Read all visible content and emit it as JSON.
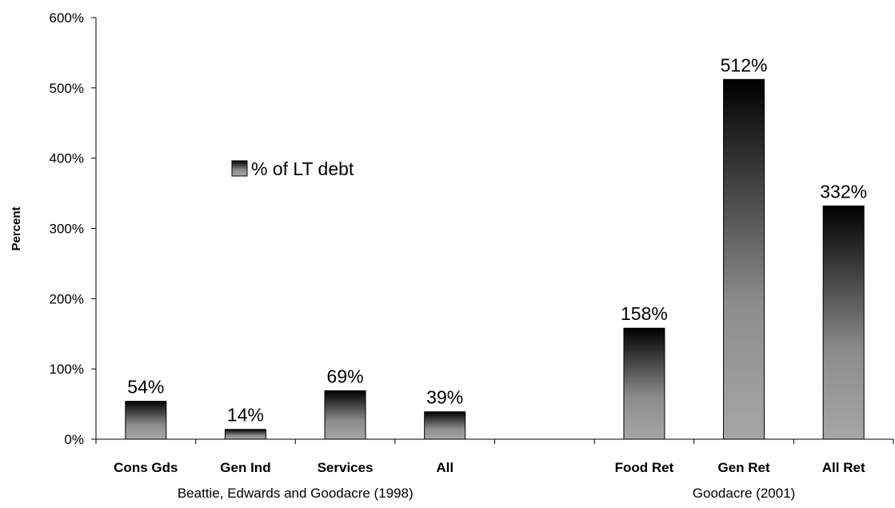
{
  "chart_data": {
    "type": "bar",
    "categories": [
      "Cons Gds",
      "Gen Ind",
      "Services",
      "All",
      "",
      "Food Ret",
      "Gen Ret",
      "All Ret"
    ],
    "series": [
      {
        "name": "% of LT debt",
        "values": [
          54,
          14,
          69,
          39,
          null,
          158,
          512,
          332
        ]
      }
    ],
    "data_labels": [
      "54%",
      "14%",
      "69%",
      "39%",
      "",
      "158%",
      "512%",
      "332%"
    ],
    "groups": [
      {
        "label": "Beattie, Edwards and Goodacre (1998)",
        "from": 0,
        "to": 3
      },
      {
        "label": "Goodacre (2001)",
        "from": 5,
        "to": 7
      }
    ],
    "ylabel": "Percent",
    "xlabel": "",
    "title": "",
    "ylim": [
      0,
      600
    ],
    "yticks": [
      "0%",
      "100%",
      "200%",
      "300%",
      "400%",
      "500%",
      "600%"
    ],
    "legend": {
      "text": "% of LT debt",
      "placement": "center-left"
    },
    "grid": false,
    "colors": {
      "bar_top": "#000000",
      "bar_bottom": "#a6a6a6",
      "axis": "#000000"
    }
  }
}
